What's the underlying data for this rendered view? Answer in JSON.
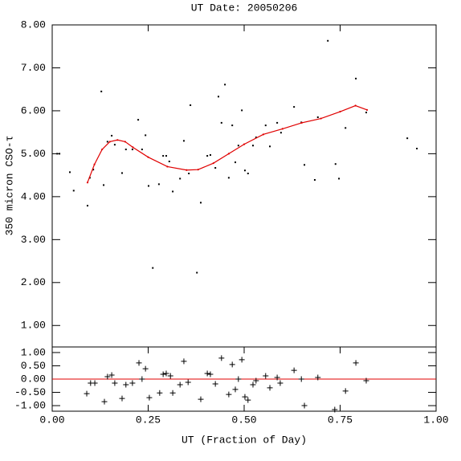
{
  "chart_data": [
    {
      "type": "scatter",
      "title": "UT Date: 20050206",
      "y_label": "350 micron CSO-τ",
      "xlim": [
        0,
        1
      ],
      "ylim": [
        0.5,
        8.0
      ],
      "yticks": [
        {
          "value": 1,
          "label": "1.00"
        },
        {
          "value": 2,
          "label": "2.00"
        },
        {
          "value": 3,
          "label": "3.00"
        },
        {
          "value": 4,
          "label": "4.00"
        },
        {
          "value": 5,
          "label": "5.00"
        },
        {
          "value": 6,
          "label": "6.00"
        },
        {
          "value": 7,
          "label": "7.00"
        },
        {
          "value": 8,
          "label": "8.00"
        }
      ],
      "series": [
        {
          "type": "scatter",
          "marker": "dot",
          "color": "#000000",
          "x": [
            0.013,
            0.019,
            0.046,
            0.056,
            0.092,
            0.098,
            0.107,
            0.128,
            0.134,
            0.144,
            0.155,
            0.163,
            0.182,
            0.192,
            0.209,
            0.224,
            0.234,
            0.243,
            0.251,
            0.262,
            0.278,
            0.289,
            0.297,
            0.305,
            0.314,
            0.333,
            0.343,
            0.356,
            0.36,
            0.377,
            0.387,
            0.404,
            0.412,
            0.425,
            0.433,
            0.441,
            0.45,
            0.46,
            0.469,
            0.477,
            0.485,
            0.494,
            0.502,
            0.51,
            0.523,
            0.531,
            0.556,
            0.567,
            0.586,
            0.596,
            0.63,
            0.649,
            0.657,
            0.684,
            0.692,
            0.718,
            0.738,
            0.747,
            0.764,
            0.791,
            0.818,
            0.925,
            0.95
          ],
          "values": [
            5.0,
            5.0,
            4.57,
            4.14,
            3.79,
            4.44,
            4.63,
            6.45,
            4.27,
            5.28,
            5.42,
            5.21,
            4.55,
            5.1,
            5.1,
            5.79,
            5.1,
            5.43,
            4.25,
            2.34,
            4.29,
            4.95,
            4.95,
            4.82,
            4.12,
            4.42,
            5.3,
            4.54,
            6.13,
            2.23,
            3.86,
            4.95,
            4.97,
            4.67,
            6.33,
            5.72,
            6.61,
            4.44,
            5.66,
            4.8,
            5.19,
            6.01,
            4.61,
            4.54,
            5.19,
            5.38,
            5.66,
            5.17,
            5.72,
            5.49,
            6.09,
            5.73,
            4.74,
            4.39,
            5.85,
            7.63,
            4.76,
            4.42,
            5.6,
            6.75,
            5.96,
            5.36,
            5.12
          ]
        },
        {
          "type": "line",
          "color": "#e00000",
          "x": [
            0.092,
            0.11,
            0.13,
            0.15,
            0.17,
            0.19,
            0.21,
            0.25,
            0.3,
            0.35,
            0.38,
            0.42,
            0.46,
            0.5,
            0.55,
            0.6,
            0.65,
            0.7,
            0.75,
            0.79,
            0.82
          ],
          "values": [
            4.33,
            4.75,
            5.1,
            5.28,
            5.32,
            5.28,
            5.15,
            4.92,
            4.7,
            4.62,
            4.63,
            4.78,
            5.0,
            5.22,
            5.45,
            5.58,
            5.72,
            5.82,
            5.98,
            6.12,
            6.02
          ]
        }
      ]
    },
    {
      "type": "scatter",
      "x_label": "UT (Fraction of Day)",
      "xlim": [
        0,
        1
      ],
      "ylim": [
        -1.21,
        1.21
      ],
      "xticks": [
        {
          "value": 0,
          "label": "0.00"
        },
        {
          "value": 0.25,
          "label": "0.25"
        },
        {
          "value": 0.5,
          "label": "0.50"
        },
        {
          "value": 0.75,
          "label": "0.75"
        },
        {
          "value": 1,
          "label": "1.00"
        }
      ],
      "yticks": [
        {
          "value": 1,
          "label": "1.00"
        },
        {
          "value": 0.5,
          "label": "0.50"
        },
        {
          "value": 0,
          "label": "0.00"
        },
        {
          "value": -0.5,
          "label": "-0.50"
        },
        {
          "value": -1,
          "label": "-1.00"
        }
      ],
      "reference_line": {
        "value": 0,
        "color": "#e00000"
      },
      "series": [
        {
          "type": "scatter",
          "marker": "plus",
          "color": "#000000",
          "x": [
            0.09,
            0.1,
            0.111,
            0.136,
            0.144,
            0.155,
            0.163,
            0.182,
            0.192,
            0.209,
            0.226,
            0.234,
            0.243,
            0.253,
            0.28,
            0.289,
            0.297,
            0.308,
            0.314,
            0.333,
            0.343,
            0.354,
            0.387,
            0.404,
            0.412,
            0.425,
            0.441,
            0.46,
            0.469,
            0.477,
            0.485,
            0.494,
            0.502,
            0.51,
            0.523,
            0.531,
            0.556,
            0.567,
            0.586,
            0.594,
            0.63,
            0.649,
            0.657,
            0.692,
            0.736,
            0.764,
            0.791,
            0.818
          ],
          "values": [
            -0.55,
            -0.15,
            -0.15,
            -0.85,
            0.09,
            0.15,
            -0.15,
            -0.73,
            -0.21,
            -0.15,
            0.61,
            0.0,
            0.39,
            -0.7,
            -0.52,
            0.18,
            0.21,
            0.12,
            -0.52,
            -0.21,
            0.67,
            -0.12,
            -0.76,
            0.21,
            0.18,
            -0.18,
            0.79,
            -0.58,
            0.55,
            -0.39,
            0.0,
            0.73,
            -0.67,
            -0.79,
            -0.21,
            -0.06,
            0.12,
            -0.33,
            0.06,
            -0.15,
            0.33,
            0.0,
            -1.0,
            0.06,
            -1.15,
            -0.45,
            0.61,
            -0.06
          ]
        }
      ]
    }
  ]
}
